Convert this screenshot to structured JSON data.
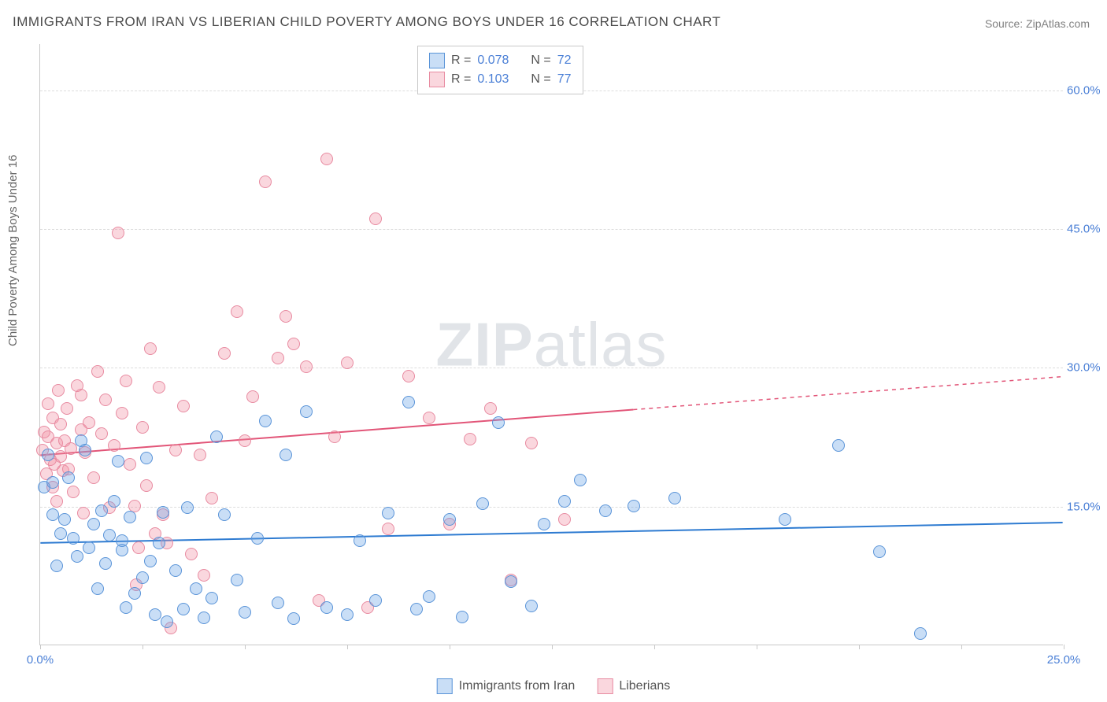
{
  "title": "IMMIGRANTS FROM IRAN VS LIBERIAN CHILD POVERTY AMONG BOYS UNDER 16 CORRELATION CHART",
  "source": "Source: ZipAtlas.com",
  "ylabel": "Child Poverty Among Boys Under 16",
  "watermark_bold": "ZIP",
  "watermark_light": "atlas",
  "chart": {
    "type": "scatter",
    "xlim": [
      0,
      25
    ],
    "ylim": [
      0,
      65
    ],
    "x_ticks": [
      0,
      2.5,
      5,
      7.5,
      10,
      12.5,
      15,
      17.5,
      20,
      22.5,
      25
    ],
    "x_tick_labels": {
      "0": "0.0%",
      "25": "25.0%"
    },
    "y_gridlines": [
      15,
      30,
      45,
      60
    ],
    "y_tick_labels": {
      "15": "15.0%",
      "30": "30.0%",
      "45": "45.0%",
      "60": "60.0%"
    },
    "background_color": "#ffffff",
    "grid_color": "#dcdcdc",
    "axis_color": "#c8c8c8",
    "text_color": "#666666",
    "value_color": "#4a7fd6",
    "marker_diameter": 16
  },
  "legend": {
    "series1": {
      "r_label": "R =",
      "r_value": "0.078",
      "n_label": "N =",
      "n_value": "72"
    },
    "series2": {
      "r_label": "R =",
      "r_value": "0.103",
      "n_label": "N =",
      "n_value": "77"
    }
  },
  "bottom_legend": {
    "series1_label": "Immigrants from Iran",
    "series2_label": "Liberians"
  },
  "series": {
    "iran": {
      "color_fill": "rgba(100,160,230,0.35)",
      "color_stroke": "#5a94d8",
      "trend": {
        "y_at_x0": 11.0,
        "y_at_xmax": 13.2,
        "solid_until_x": 25,
        "stroke": "#2e7bd1",
        "stroke_width": 2
      },
      "points": [
        [
          0.1,
          17
        ],
        [
          0.2,
          20.5
        ],
        [
          0.3,
          14
        ],
        [
          0.3,
          17.5
        ],
        [
          0.5,
          12
        ],
        [
          0.6,
          13.5
        ],
        [
          0.7,
          18
        ],
        [
          0.8,
          11.5
        ],
        [
          0.9,
          9.5
        ],
        [
          1.0,
          22
        ],
        [
          1.1,
          21
        ],
        [
          1.2,
          10.5
        ],
        [
          1.3,
          13
        ],
        [
          1.5,
          14.5
        ],
        [
          1.6,
          8.8
        ],
        [
          1.7,
          11.8
        ],
        [
          1.8,
          15.5
        ],
        [
          1.9,
          19.8
        ],
        [
          2.0,
          10.2
        ],
        [
          2.0,
          11.2
        ],
        [
          2.2,
          13.8
        ],
        [
          2.3,
          5.5
        ],
        [
          2.5,
          7.2
        ],
        [
          2.6,
          20.2
        ],
        [
          2.7,
          9.0
        ],
        [
          2.8,
          3.2
        ],
        [
          2.9,
          11.0
        ],
        [
          3.0,
          14.3
        ],
        [
          3.1,
          2.5
        ],
        [
          3.5,
          3.8
        ],
        [
          3.6,
          14.8
        ],
        [
          3.8,
          6.0
        ],
        [
          4.0,
          2.9
        ],
        [
          4.2,
          5.0
        ],
        [
          4.5,
          14.0
        ],
        [
          4.8,
          7.0
        ],
        [
          5.0,
          3.5
        ],
        [
          5.3,
          11.5
        ],
        [
          5.5,
          24.2
        ],
        [
          5.8,
          4.5
        ],
        [
          6.0,
          20.5
        ],
        [
          6.2,
          2.8
        ],
        [
          6.5,
          25.2
        ],
        [
          7.0,
          4.0
        ],
        [
          7.5,
          3.2
        ],
        [
          7.8,
          11.2
        ],
        [
          8.2,
          4.8
        ],
        [
          8.5,
          14.2
        ],
        [
          9.0,
          26.2
        ],
        [
          9.2,
          3.8
        ],
        [
          9.5,
          5.2
        ],
        [
          10.0,
          13.5
        ],
        [
          10.3,
          3.0
        ],
        [
          10.8,
          15.2
        ],
        [
          11.2,
          24.0
        ],
        [
          11.5,
          6.8
        ],
        [
          12.0,
          4.2
        ],
        [
          12.3,
          13.0
        ],
        [
          12.8,
          15.5
        ],
        [
          13.2,
          17.8
        ],
        [
          13.8,
          14.5
        ],
        [
          14.5,
          15.0
        ],
        [
          15.5,
          15.8
        ],
        [
          18.2,
          13.5
        ],
        [
          19.5,
          21.5
        ],
        [
          20.5,
          10.0
        ],
        [
          21.5,
          1.2
        ],
        [
          0.4,
          8.5
        ],
        [
          1.4,
          6.0
        ],
        [
          4.3,
          22.5
        ],
        [
          3.3,
          8.0
        ],
        [
          2.1,
          4.0
        ]
      ]
    },
    "liberia": {
      "color_fill": "rgba(240,140,160,0.35)",
      "color_stroke": "#e88ba1",
      "trend": {
        "y_at_x0": 20.5,
        "y_at_xmax": 29.0,
        "solid_until_x": 14.5,
        "stroke": "#e25578",
        "stroke_width": 2
      },
      "points": [
        [
          0.05,
          21.0
        ],
        [
          0.1,
          23.0
        ],
        [
          0.15,
          18.5
        ],
        [
          0.2,
          22.5
        ],
        [
          0.2,
          26.0
        ],
        [
          0.25,
          20.0
        ],
        [
          0.3,
          24.5
        ],
        [
          0.3,
          17.0
        ],
        [
          0.35,
          19.5
        ],
        [
          0.4,
          21.8
        ],
        [
          0.4,
          15.5
        ],
        [
          0.45,
          27.5
        ],
        [
          0.5,
          20.3
        ],
        [
          0.5,
          23.8
        ],
        [
          0.55,
          18.8
        ],
        [
          0.6,
          22.0
        ],
        [
          0.65,
          25.5
        ],
        [
          0.7,
          19.0
        ],
        [
          0.75,
          21.2
        ],
        [
          0.8,
          16.5
        ],
        [
          0.9,
          28.0
        ],
        [
          1.0,
          23.2
        ],
        [
          1.0,
          27.0
        ],
        [
          1.1,
          20.8
        ],
        [
          1.2,
          24.0
        ],
        [
          1.3,
          18.0
        ],
        [
          1.4,
          29.5
        ],
        [
          1.5,
          22.8
        ],
        [
          1.6,
          26.5
        ],
        [
          1.7,
          14.8
        ],
        [
          1.8,
          21.5
        ],
        [
          1.9,
          44.5
        ],
        [
          2.0,
          25.0
        ],
        [
          2.1,
          28.5
        ],
        [
          2.2,
          19.5
        ],
        [
          2.3,
          15.0
        ],
        [
          2.4,
          10.5
        ],
        [
          2.5,
          23.5
        ],
        [
          2.6,
          17.2
        ],
        [
          2.7,
          32.0
        ],
        [
          2.8,
          12.0
        ],
        [
          2.9,
          27.8
        ],
        [
          3.0,
          14.0
        ],
        [
          3.1,
          11.0
        ],
        [
          3.3,
          21.0
        ],
        [
          3.5,
          25.8
        ],
        [
          3.7,
          9.8
        ],
        [
          3.9,
          20.5
        ],
        [
          4.0,
          7.5
        ],
        [
          4.2,
          15.8
        ],
        [
          4.5,
          31.5
        ],
        [
          4.8,
          36.0
        ],
        [
          5.0,
          22.0
        ],
        [
          5.2,
          26.8
        ],
        [
          5.5,
          50.0
        ],
        [
          5.8,
          31.0
        ],
        [
          6.0,
          35.5
        ],
        [
          6.2,
          32.5
        ],
        [
          6.5,
          30.0
        ],
        [
          6.8,
          4.8
        ],
        [
          7.0,
          52.5
        ],
        [
          7.2,
          22.5
        ],
        [
          7.5,
          30.5
        ],
        [
          8.0,
          4.0
        ],
        [
          8.2,
          46.0
        ],
        [
          8.5,
          12.5
        ],
        [
          9.0,
          29.0
        ],
        [
          9.5,
          24.5
        ],
        [
          10.0,
          13.0
        ],
        [
          10.5,
          22.2
        ],
        [
          11.0,
          25.5
        ],
        [
          11.5,
          7.0
        ],
        [
          12.0,
          21.8
        ],
        [
          12.8,
          13.5
        ],
        [
          3.2,
          1.8
        ],
        [
          2.35,
          6.5
        ],
        [
          1.05,
          14.2
        ]
      ]
    }
  }
}
